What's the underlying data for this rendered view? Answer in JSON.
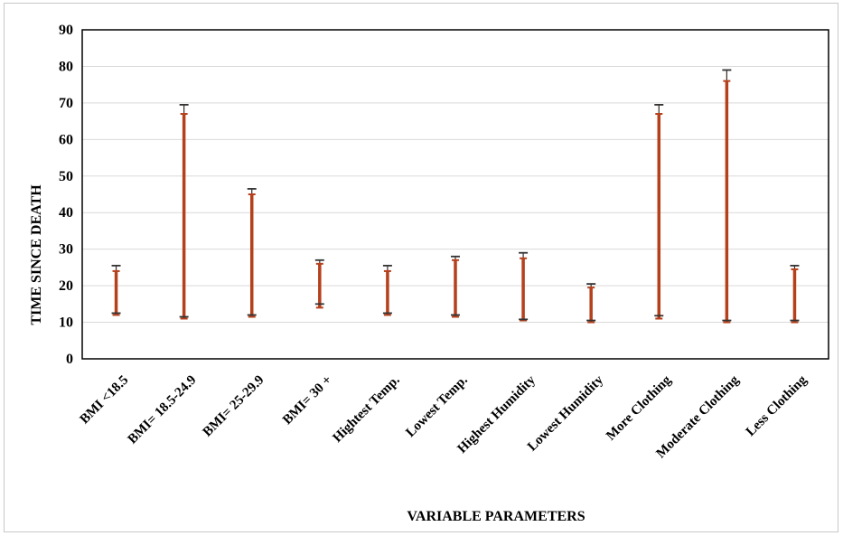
{
  "chart_data": {
    "type": "range",
    "xlabel": "VARIABLE PARAMETERS",
    "ylabel": "TIME SINCE DEATH",
    "ylim": [
      0,
      90
    ],
    "yticks": [
      0,
      10,
      20,
      30,
      40,
      50,
      60,
      70,
      80,
      90
    ],
    "grid": true,
    "categories": [
      "BMI <18.5",
      "BMI= 18.5-24.9",
      "BMI= 25-29.9",
      "BMI= 30 +",
      "Hightest Temp.",
      "Lowest Temp.",
      "Highest Humidity",
      "Lowest Humidity",
      "More Clothing",
      "Moderate Clothing",
      "Less Clothing"
    ],
    "series": [
      {
        "low": [
          12,
          11,
          11.5,
          14,
          12,
          11.5,
          10.5,
          10,
          11,
          10,
          10
        ],
        "high": [
          24,
          67,
          45,
          26,
          24,
          27,
          27.5,
          19.5,
          67,
          76,
          24.5
        ],
        "low_error": [
          12.5,
          11.5,
          12,
          15,
          12.5,
          12,
          10.8,
          10.5,
          11.8,
          10.5,
          10.5
        ],
        "high_error": [
          25.5,
          69.5,
          46.5,
          27,
          25.5,
          28,
          29,
          20.5,
          69.5,
          79,
          25.5
        ],
        "color": "#b5401c"
      }
    ]
  }
}
